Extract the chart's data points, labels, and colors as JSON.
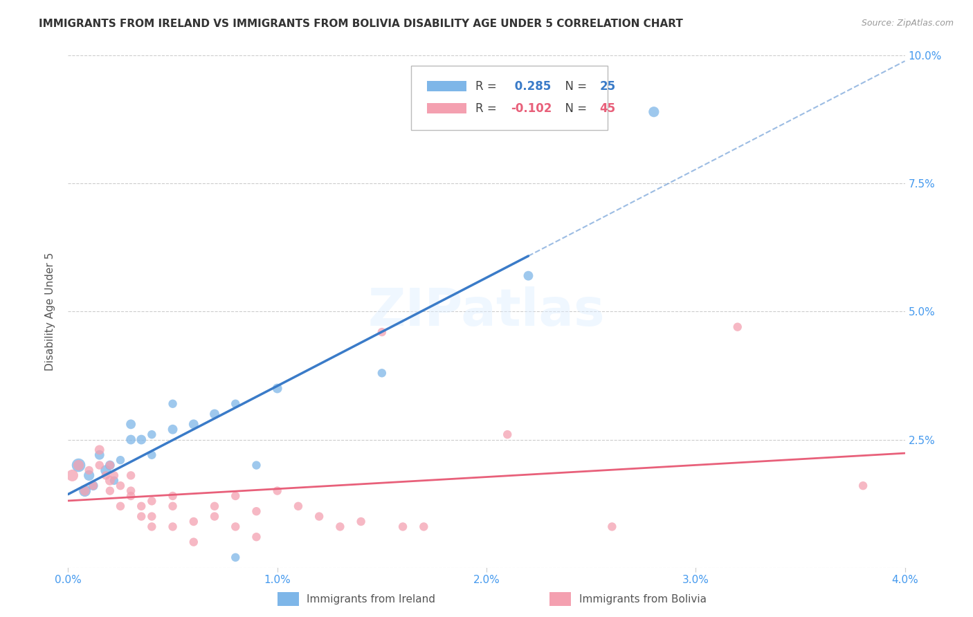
{
  "title": "IMMIGRANTS FROM IRELAND VS IMMIGRANTS FROM BOLIVIA DISABILITY AGE UNDER 5 CORRELATION CHART",
  "source": "Source: ZipAtlas.com",
  "ylabel": "Disability Age Under 5",
  "xlim": [
    0.0,
    0.04
  ],
  "ylim": [
    0.0,
    0.1
  ],
  "xticks": [
    0.0,
    0.01,
    0.02,
    0.03,
    0.04
  ],
  "xtick_labels": [
    "0.0%",
    "1.0%",
    "2.0%",
    "3.0%",
    "4.0%"
  ],
  "yticks": [
    0.0,
    0.025,
    0.05,
    0.075,
    0.1
  ],
  "ytick_labels": [
    "",
    "2.5%",
    "5.0%",
    "7.5%",
    "10.0%"
  ],
  "ireland_color": "#7EB6E8",
  "bolivia_color": "#F4A0B0",
  "ireland_line_color": "#3A7BC8",
  "bolivia_line_color": "#E8607A",
  "ireland_r": 0.285,
  "ireland_n": 25,
  "bolivia_r": -0.102,
  "bolivia_n": 45,
  "ireland_x": [
    0.0005,
    0.0008,
    0.001,
    0.0012,
    0.0015,
    0.0018,
    0.002,
    0.0022,
    0.0025,
    0.003,
    0.003,
    0.0035,
    0.004,
    0.004,
    0.005,
    0.005,
    0.006,
    0.007,
    0.008,
    0.008,
    0.009,
    0.01,
    0.015,
    0.022,
    0.028
  ],
  "ireland_y": [
    0.02,
    0.015,
    0.018,
    0.016,
    0.022,
    0.019,
    0.02,
    0.017,
    0.021,
    0.025,
    0.028,
    0.025,
    0.022,
    0.026,
    0.027,
    0.032,
    0.028,
    0.03,
    0.032,
    0.002,
    0.02,
    0.035,
    0.038,
    0.057,
    0.089
  ],
  "ireland_sizes": [
    200,
    150,
    120,
    100,
    100,
    120,
    100,
    80,
    80,
    100,
    100,
    100,
    80,
    80,
    100,
    80,
    100,
    100,
    80,
    80,
    80,
    100,
    80,
    100,
    120
  ],
  "bolivia_x": [
    0.0002,
    0.0005,
    0.0008,
    0.001,
    0.0012,
    0.0015,
    0.0015,
    0.0018,
    0.002,
    0.002,
    0.002,
    0.0022,
    0.0025,
    0.0025,
    0.003,
    0.003,
    0.003,
    0.0035,
    0.0035,
    0.004,
    0.004,
    0.004,
    0.005,
    0.005,
    0.005,
    0.006,
    0.006,
    0.007,
    0.007,
    0.008,
    0.008,
    0.009,
    0.009,
    0.01,
    0.011,
    0.012,
    0.013,
    0.014,
    0.015,
    0.016,
    0.017,
    0.021,
    0.026,
    0.032,
    0.038
  ],
  "bolivia_y": [
    0.018,
    0.02,
    0.015,
    0.019,
    0.016,
    0.02,
    0.023,
    0.018,
    0.017,
    0.015,
    0.02,
    0.018,
    0.016,
    0.012,
    0.015,
    0.014,
    0.018,
    0.012,
    0.01,
    0.013,
    0.01,
    0.008,
    0.014,
    0.008,
    0.012,
    0.009,
    0.005,
    0.012,
    0.01,
    0.008,
    0.014,
    0.011,
    0.006,
    0.015,
    0.012,
    0.01,
    0.008,
    0.009,
    0.046,
    0.008,
    0.008,
    0.026,
    0.008,
    0.047,
    0.016
  ],
  "bolivia_sizes": [
    150,
    120,
    100,
    80,
    80,
    80,
    100,
    80,
    100,
    80,
    80,
    80,
    80,
    80,
    80,
    80,
    80,
    80,
    80,
    80,
    80,
    80,
    80,
    80,
    80,
    80,
    80,
    80,
    80,
    80,
    80,
    80,
    80,
    80,
    80,
    80,
    80,
    80,
    80,
    80,
    80,
    80,
    80,
    80,
    80
  ],
  "background_color": "#FFFFFF",
  "grid_color": "#CCCCCC",
  "title_fontsize": 11,
  "tick_color": "#4499EE",
  "watermark": "ZIPatlas"
}
